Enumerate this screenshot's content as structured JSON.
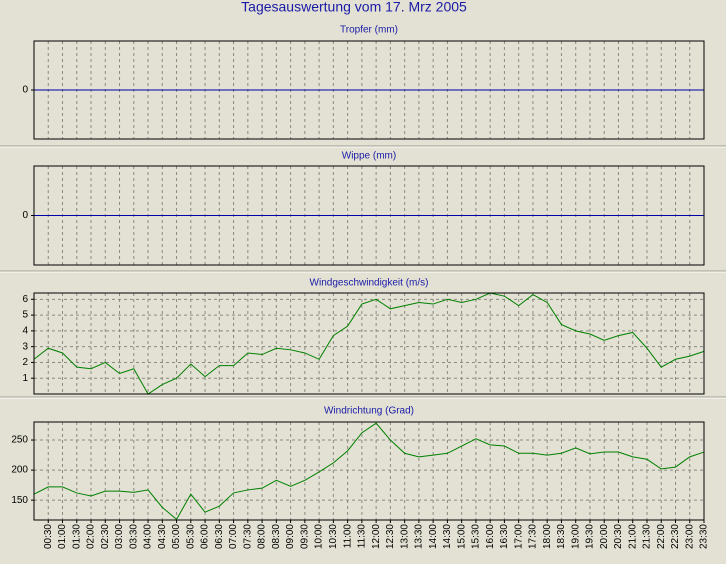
{
  "title": "Tagesauswertung vom 17. Mrz 2005",
  "chart_data": [
    {
      "type": "line",
      "title": "Tropfer (mm)",
      "color": "#0000a8",
      "ylim": [
        -1,
        1
      ],
      "yticks": [
        0
      ],
      "grid": true,
      "values": [
        0,
        0,
        0,
        0,
        0,
        0,
        0,
        0,
        0,
        0,
        0,
        0,
        0,
        0,
        0,
        0,
        0,
        0,
        0,
        0,
        0,
        0,
        0,
        0,
        0,
        0,
        0,
        0,
        0,
        0,
        0,
        0,
        0,
        0,
        0,
        0,
        0,
        0,
        0,
        0,
        0,
        0,
        0,
        0,
        0,
        0,
        0,
        0
      ]
    },
    {
      "type": "line",
      "title": "Wippe (mm)",
      "color": "#0000a8",
      "ylim": [
        -1,
        1
      ],
      "yticks": [
        0
      ],
      "grid": true,
      "values": [
        0,
        0,
        0,
        0,
        0,
        0,
        0,
        0,
        0,
        0,
        0,
        0,
        0,
        0,
        0,
        0,
        0,
        0,
        0,
        0,
        0,
        0,
        0,
        0,
        0,
        0,
        0,
        0,
        0,
        0,
        0,
        0,
        0,
        0,
        0,
        0,
        0,
        0,
        0,
        0,
        0,
        0,
        0,
        0,
        0,
        0,
        0,
        0
      ]
    },
    {
      "type": "line",
      "title": "Windgeschwindigkeit (m/s)",
      "color": "#008000",
      "ylim": [
        0,
        6.4
      ],
      "yticks": [
        1,
        2,
        3,
        4,
        5,
        6
      ],
      "grid": true,
      "values": [
        2.2,
        2.9,
        2.6,
        1.7,
        1.6,
        2.0,
        1.3,
        1.6,
        0.0,
        0.6,
        1.0,
        1.9,
        1.1,
        1.8,
        1.8,
        2.6,
        2.5,
        2.9,
        2.8,
        2.6,
        2.2,
        3.7,
        4.3,
        5.7,
        6.0,
        5.4,
        5.6,
        5.8,
        5.7,
        6.0,
        5.8,
        6.0,
        6.4,
        6.2,
        5.6,
        6.3,
        5.8,
        4.4,
        4.0,
        3.8,
        3.4,
        3.7,
        3.9,
        2.9,
        1.7,
        2.2,
        2.4,
        2.7
      ]
    },
    {
      "type": "line",
      "title": "Windrichtung (Grad)",
      "color": "#008000",
      "ylim": [
        117,
        280
      ],
      "yticks": [
        150,
        200,
        250
      ],
      "grid": true,
      "categories": [
        null,
        "00:30",
        "01:00",
        "01:30",
        "02:00",
        "02:30",
        "03:00",
        "03:30",
        "04:00",
        "04:30",
        "05:00",
        "05:30",
        "06:00",
        "06:30",
        "07:00",
        "07:30",
        "08:00",
        "08:30",
        "09:00",
        "09:30",
        "10:00",
        "10:30",
        "11:00",
        "11:30",
        "12:00",
        "12:30",
        "13:00",
        "13:30",
        "14:00",
        "14:30",
        "15:00",
        "15:30",
        "16:00",
        "16:30",
        "17:00",
        "17:30",
        "18:00",
        "18:30",
        "19:00",
        "19:30",
        "20:00",
        "20:30",
        "21:00",
        "21:30",
        "22:00",
        "22:30",
        "23:00",
        "23:30"
      ],
      "values": [
        160,
        172,
        172,
        162,
        157,
        165,
        165,
        163,
        167,
        138,
        118,
        160,
        130,
        140,
        162,
        167,
        170,
        183,
        173,
        183,
        197,
        212,
        232,
        262,
        278,
        250,
        228,
        222,
        225,
        228,
        240,
        252,
        242,
        240,
        228,
        228,
        225,
        228,
        237,
        227,
        230,
        230,
        222,
        218,
        202,
        205,
        222,
        230
      ]
    }
  ]
}
